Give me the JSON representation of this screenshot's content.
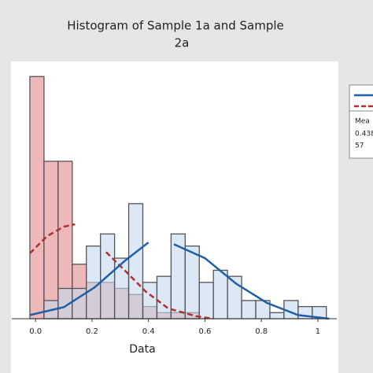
{
  "chart_data": {
    "type": "histogram",
    "title": [
      "Histogram of Sample 1a and Sample",
      "2a"
    ],
    "x_label": "Data",
    "bins": [
      -0.02,
      0.03,
      0.08,
      0.13,
      0.18,
      0.23,
      0.28,
      0.33,
      0.38,
      0.43,
      0.48,
      0.53,
      0.58,
      0.63,
      0.68,
      0.73,
      0.78,
      0.83,
      0.88,
      0.93,
      0.98,
      1.03
    ],
    "series": [
      {
        "color": "#b03030",
        "fill": "#e7a6a8",
        "values": [
          40,
          26,
          26,
          9,
          6,
          6,
          5,
          4,
          2,
          1,
          1,
          1,
          0,
          0,
          0,
          0,
          0,
          0,
          0,
          0,
          0
        ],
        "curve_x": [
          -0.02,
          0.04,
          0.1,
          0.14,
          null,
          0.25,
          0.32,
          0.39,
          0.47,
          0.57,
          0.63
        ],
        "curve": [
          10.8,
          13.6,
          15.2,
          15.6,
          null,
          11,
          7.8,
          4.5,
          1.7,
          0.4,
          0
        ],
        "dashed": true
      },
      {
        "color": "#1f5fa8",
        "fill": "#c5d9ee",
        "values": [
          0,
          3,
          5,
          5,
          12,
          14,
          10,
          19,
          6,
          7,
          14,
          12,
          6,
          8,
          7,
          3,
          3,
          1,
          3,
          2,
          2
        ],
        "curve_x": [
          -0.02,
          0.1,
          0.21,
          0.32,
          0.4,
          null,
          0.49,
          0.6,
          0.71,
          0.82,
          0.93,
          1.04
        ],
        "curve": [
          0.6,
          1.9,
          5.2,
          9.7,
          12.6,
          null,
          12.3,
          10,
          5.8,
          2.6,
          0.6,
          0
        ],
        "dashed": false
      }
    ],
    "xlim": [
      -0.084,
      1.067
    ],
    "xticks": [
      {
        "value": 0,
        "label": "0.0"
      },
      0.2,
      0.4,
      0.6,
      0.8,
      1
    ],
    "ylim": [
      0,
      42.5
    ],
    "stats_box": [
      "Mea",
      "0.438",
      "57"
    ]
  }
}
